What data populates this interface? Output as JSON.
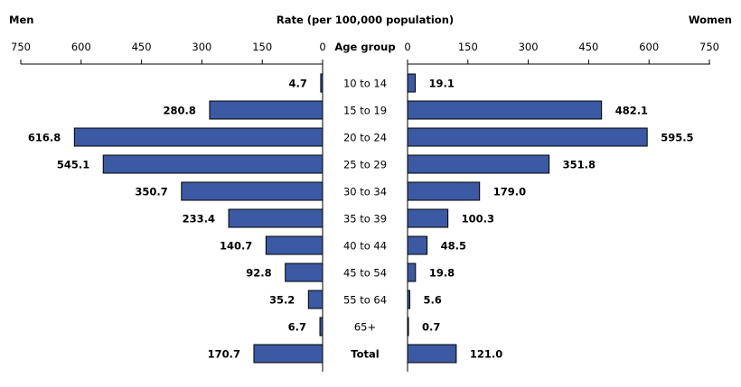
{
  "chart_data": {
    "type": "bar",
    "title": "Rate (per 100,000 population)",
    "center_header": "Age group",
    "left_label": "Men",
    "right_label": "Women",
    "bar_color": "#3b5aa3",
    "xlim": [
      0,
      750
    ],
    "ticks": [
      "750",
      "600",
      "450",
      "300",
      "150",
      "0"
    ],
    "right_ticks": [
      "0",
      "150",
      "300",
      "450",
      "600",
      "750"
    ],
    "tick_values": [
      750,
      600,
      450,
      300,
      150,
      0
    ],
    "right_tick_values": [
      0,
      150,
      300,
      450,
      600,
      750
    ],
    "categories": [
      "10 to 14",
      "15 to 19",
      "20 to 24",
      "25 to 29",
      "30 to 34",
      "35 to 39",
      "40 to 44",
      "45 to 54",
      "55 to 64",
      "65+",
      "Total"
    ],
    "series": [
      {
        "name": "Men",
        "values": [
          4.7,
          280.8,
          616.8,
          545.1,
          350.7,
          233.4,
          140.7,
          92.8,
          35.2,
          6.7,
          170.7
        ],
        "labels": [
          "4.7",
          "280.8",
          "616.8",
          "545.1",
          "350.7",
          "233.4",
          "140.7",
          "92.8",
          "35.2",
          "6.7",
          "170.7"
        ]
      },
      {
        "name": "Women",
        "values": [
          19.1,
          482.1,
          595.5,
          351.8,
          179.0,
          100.3,
          48.5,
          19.8,
          5.6,
          0.7,
          121.0
        ],
        "labels": [
          "19.1",
          "482.1",
          "595.5",
          "351.8",
          "179.0",
          "100.3",
          "48.5",
          "19.8",
          "5.6",
          "0.7",
          "121.0"
        ]
      }
    ]
  }
}
